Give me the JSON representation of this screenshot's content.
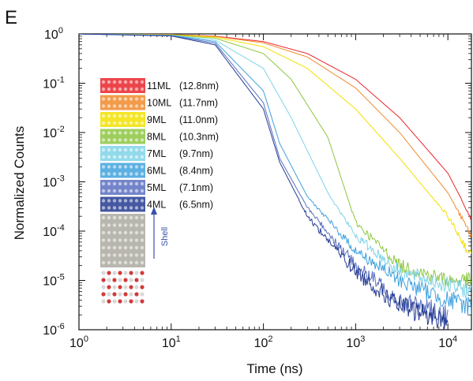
{
  "panel_label": "E",
  "chart_data": {
    "type": "line",
    "title": "",
    "xlabel": "Time (ns)",
    "ylabel": "Normalized Counts",
    "xscale": "log",
    "yscale": "log",
    "xlim": [
      1,
      18000
    ],
    "ylim": [
      1e-06,
      1
    ],
    "x_ticks": [
      {
        "base": "10",
        "exp": "0",
        "value": 1
      },
      {
        "base": "10",
        "exp": "1",
        "value": 10
      },
      {
        "base": "10",
        "exp": "2",
        "value": 100
      },
      {
        "base": "10",
        "exp": "3",
        "value": 1000
      },
      {
        "base": "10",
        "exp": "4",
        "value": 10000
      }
    ],
    "y_ticks": [
      {
        "base": "10",
        "exp": "0",
        "value": 1
      },
      {
        "base": "10",
        "exp": "-1",
        "value": 0.1
      },
      {
        "base": "10",
        "exp": "-2",
        "value": 0.01
      },
      {
        "base": "10",
        "exp": "-3",
        "value": 0.001
      },
      {
        "base": "10",
        "exp": "-4",
        "value": 0.0001
      },
      {
        "base": "10",
        "exp": "-5",
        "value": 1e-05
      },
      {
        "base": "10",
        "exp": "-6",
        "value": 1e-06
      }
    ],
    "grid": false,
    "legend_position": "left",
    "shell_arrow_label": "Shell",
    "series": [
      {
        "name": "11ML",
        "label": "(12.8nm)",
        "color": "#e8252b",
        "x": [
          1,
          10,
          30,
          100,
          300,
          1000,
          3000,
          10000,
          18000
        ],
        "y": [
          1,
          0.97,
          0.9,
          0.7,
          0.4,
          0.12,
          0.02,
          0.0015,
          0.00018
        ]
      },
      {
        "name": "10ML",
        "label": "(11.7nm)",
        "color": "#f08a2a",
        "x": [
          1,
          10,
          30,
          100,
          300,
          1000,
          3000,
          10000,
          18000
        ],
        "y": [
          1,
          0.97,
          0.89,
          0.66,
          0.34,
          0.08,
          0.01,
          0.0006,
          8e-05
        ]
      },
      {
        "name": "9ML",
        "label": "(11.0nm)",
        "color": "#f2e000",
        "x": [
          1,
          10,
          30,
          100,
          300,
          1000,
          3000,
          10000,
          18000
        ],
        "y": [
          1,
          0.96,
          0.86,
          0.55,
          0.2,
          0.03,
          0.003,
          0.0002,
          3e-05
        ]
      },
      {
        "name": "8ML",
        "label": "(10.3nm)",
        "color": "#8cc63f",
        "x": [
          1,
          10,
          30,
          100,
          200,
          500,
          1000,
          3000,
          10000,
          18000
        ],
        "y": [
          1,
          0.95,
          0.82,
          0.4,
          0.12,
          0.008,
          0.00015,
          2e-05,
          1e-05,
          1e-05
        ]
      },
      {
        "name": "7ML",
        "label": "(9.7nm)",
        "color": "#7fd3e8",
        "x": [
          1,
          10,
          30,
          100,
          200,
          500,
          1000,
          3000,
          10000,
          18000
        ],
        "y": [
          1,
          0.94,
          0.75,
          0.2,
          0.02,
          0.0006,
          8e-05,
          1.5e-05,
          8e-06,
          6e-06
        ]
      },
      {
        "name": "6ML",
        "label": "(8.4nm)",
        "color": "#3fa2dd",
        "x": [
          1,
          10,
          30,
          100,
          150,
          300,
          1000,
          3000,
          10000,
          18000
        ],
        "y": [
          1,
          0.93,
          0.7,
          0.07,
          0.006,
          0.0005,
          4e-05,
          1e-05,
          4e-06,
          3e-06
        ]
      },
      {
        "name": "5ML",
        "label": "(7.1nm)",
        "color": "#5a6fbf",
        "x": [
          1,
          10,
          30,
          100,
          150,
          300,
          1000,
          3000,
          10000
        ],
        "y": [
          1,
          0.92,
          0.65,
          0.04,
          0.003,
          0.0003,
          2e-05,
          4e-06,
          2e-06
        ]
      },
      {
        "name": "4ML",
        "label": "(6.5nm)",
        "color": "#253b91",
        "x": [
          1,
          10,
          30,
          100,
          150,
          300,
          1000,
          3000,
          10000
        ],
        "y": [
          1,
          0.91,
          0.6,
          0.03,
          0.0025,
          0.0002,
          1.5e-05,
          3e-06,
          1.5e-06
        ]
      }
    ]
  }
}
